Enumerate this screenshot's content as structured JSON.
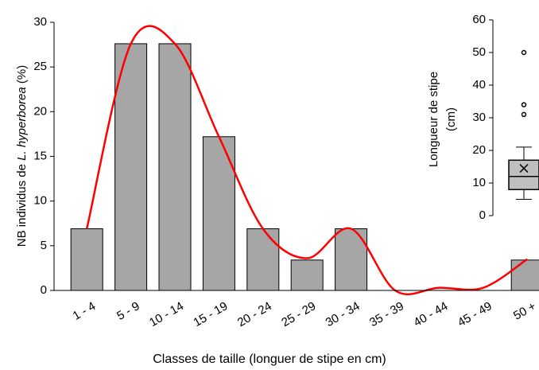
{
  "chart_data": [
    {
      "type": "bar",
      "ylabel": [
        "NB individus de ",
        "L. hyperborea",
        " (%)"
      ],
      "xlabel": "Classes de taille (longuer de stipe en cm)",
      "categories": [
        "1 - 4",
        "5 - 9",
        "10 - 14",
        "15 - 19",
        "20 - 24",
        "25 - 29",
        "30 - 34",
        "35 - 39",
        "40 - 44",
        "45 - 49",
        "50 +"
      ],
      "series": [
        {
          "type": "bar",
          "color": "#a6a6a6",
          "values": [
            6.9,
            27.6,
            27.6,
            17.2,
            6.9,
            3.4,
            6.9,
            0,
            0,
            0,
            3.4
          ]
        },
        {
          "type": "line",
          "color": "#ff0000",
          "values": [
            6.9,
            27.6,
            27.6,
            17.2,
            6.9,
            3.6,
            6.9,
            0,
            0.3,
            0.3,
            3.5
          ]
        }
      ],
      "ylim": [
        0,
        30
      ],
      "yticks": [
        0,
        5,
        10,
        15,
        20,
        25,
        30
      ]
    },
    {
      "type": "box",
      "ylabel": [
        "Longueur de stipe",
        "(cm)"
      ],
      "color": "#bfbfbf",
      "box": {
        "whislo": 5,
        "q1": 8,
        "med": 12,
        "q3": 17,
        "whishi": 21,
        "mean": 14.5,
        "fliers": [
          31,
          34,
          50
        ]
      },
      "ylim": [
        0,
        60
      ],
      "yticks": [
        0,
        10,
        20,
        30,
        40,
        50,
        60
      ]
    }
  ]
}
